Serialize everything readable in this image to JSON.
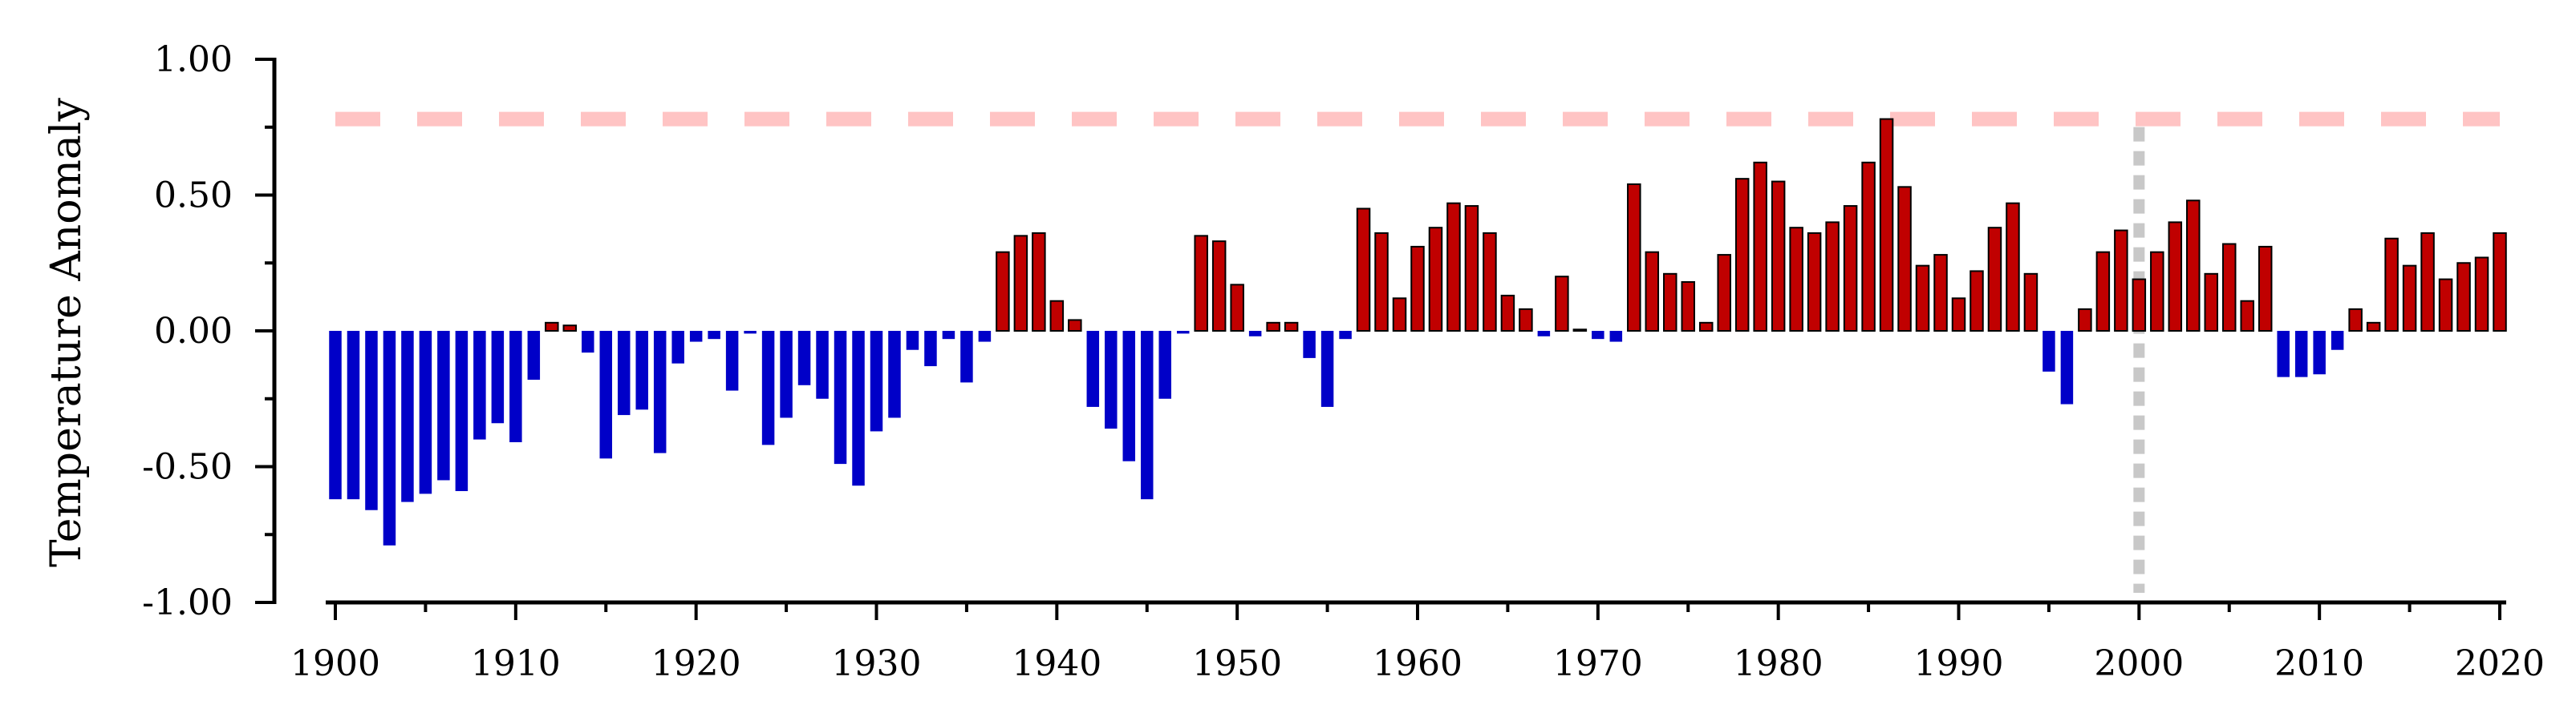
{
  "chart_data": {
    "type": "bar",
    "ylabel": "Temperature Anomaly",
    "xlabel": "",
    "ylim": [
      -1.0,
      1.0
    ],
    "xlim": [
      1900,
      2020
    ],
    "y_ticks": [
      "1.00",
      "0.50",
      "0.00",
      "-0.50",
      "-1.00"
    ],
    "x_ticks": [
      "1900",
      "1910",
      "1920",
      "1930",
      "1940",
      "1950",
      "1960",
      "1970",
      "1980",
      "1990",
      "2000",
      "2010",
      "2020"
    ],
    "grid": false,
    "x": [
      1900,
      1901,
      1902,
      1903,
      1904,
      1905,
      1906,
      1907,
      1908,
      1909,
      1910,
      1911,
      1912,
      1913,
      1914,
      1915,
      1916,
      1917,
      1918,
      1919,
      1920,
      1921,
      1922,
      1923,
      1924,
      1925,
      1926,
      1927,
      1928,
      1929,
      1930,
      1931,
      1932,
      1933,
      1934,
      1935,
      1936,
      1937,
      1938,
      1939,
      1940,
      1941,
      1942,
      1943,
      1944,
      1945,
      1946,
      1947,
      1948,
      1949,
      1950,
      1951,
      1952,
      1953,
      1954,
      1955,
      1956,
      1957,
      1958,
      1959,
      1960,
      1961,
      1962,
      1963,
      1964,
      1965,
      1966,
      1967,
      1968,
      1969,
      1970,
      1971,
      1972,
      1973,
      1974,
      1975,
      1976,
      1977,
      1978,
      1979,
      1980,
      1981,
      1982,
      1983,
      1984,
      1985,
      1986,
      1987,
      1988,
      1989,
      1990,
      1991,
      1992,
      1993,
      1994,
      1995,
      1996,
      1997,
      1998,
      1999,
      2000,
      2001,
      2002,
      2003,
      2004,
      2005,
      2006,
      2007,
      2008,
      2009,
      2010,
      2011,
      2012,
      2013,
      2014,
      2015,
      2016,
      2017,
      2018,
      2019,
      2020
    ],
    "values": [
      -0.62,
      -0.62,
      -0.66,
      -0.79,
      -0.63,
      -0.6,
      -0.55,
      -0.59,
      -0.4,
      -0.34,
      -0.41,
      -0.18,
      0.03,
      0.02,
      -0.08,
      -0.47,
      -0.31,
      -0.29,
      -0.45,
      -0.12,
      -0.04,
      -0.03,
      -0.22,
      -0.01,
      -0.42,
      -0.32,
      -0.2,
      -0.25,
      -0.49,
      -0.57,
      -0.37,
      -0.32,
      -0.07,
      -0.13,
      -0.03,
      -0.19,
      -0.04,
      0.29,
      0.35,
      0.36,
      0.11,
      0.04,
      -0.28,
      -0.36,
      -0.48,
      -0.62,
      -0.25,
      -0.01,
      0.35,
      0.33,
      0.17,
      -0.02,
      0.03,
      0.03,
      -0.1,
      -0.28,
      -0.03,
      0.45,
      0.36,
      0.12,
      0.31,
      0.38,
      0.47,
      0.46,
      0.36,
      0.13,
      0.08,
      -0.02,
      0.2,
      0.005,
      -0.03,
      -0.04,
      0.54,
      0.29,
      0.21,
      0.18,
      0.03,
      0.28,
      0.56,
      0.62,
      0.55,
      0.38,
      0.36,
      0.4,
      0.46,
      0.62,
      0.78,
      0.53,
      0.24,
      0.28,
      0.12,
      0.22,
      0.38,
      0.47,
      0.21,
      -0.15,
      -0.27,
      0.08,
      0.29,
      0.37,
      0.19,
      0.29,
      0.4,
      0.48,
      0.21,
      0.32,
      0.11,
      0.31,
      -0.17,
      -0.17,
      -0.16,
      -0.07,
      0.08,
      0.03,
      0.34,
      0.24,
      0.36,
      0.19,
      0.25,
      0.27,
      0.36
    ],
    "reference_line_y": 0.78,
    "reference_line_x": 2000,
    "colors": {
      "positive": "#c00000",
      "negative": "#0000c8",
      "reference_line": "#ffc4c4",
      "vertical_line": "#c8c8c8",
      "axis": "#000000"
    }
  }
}
